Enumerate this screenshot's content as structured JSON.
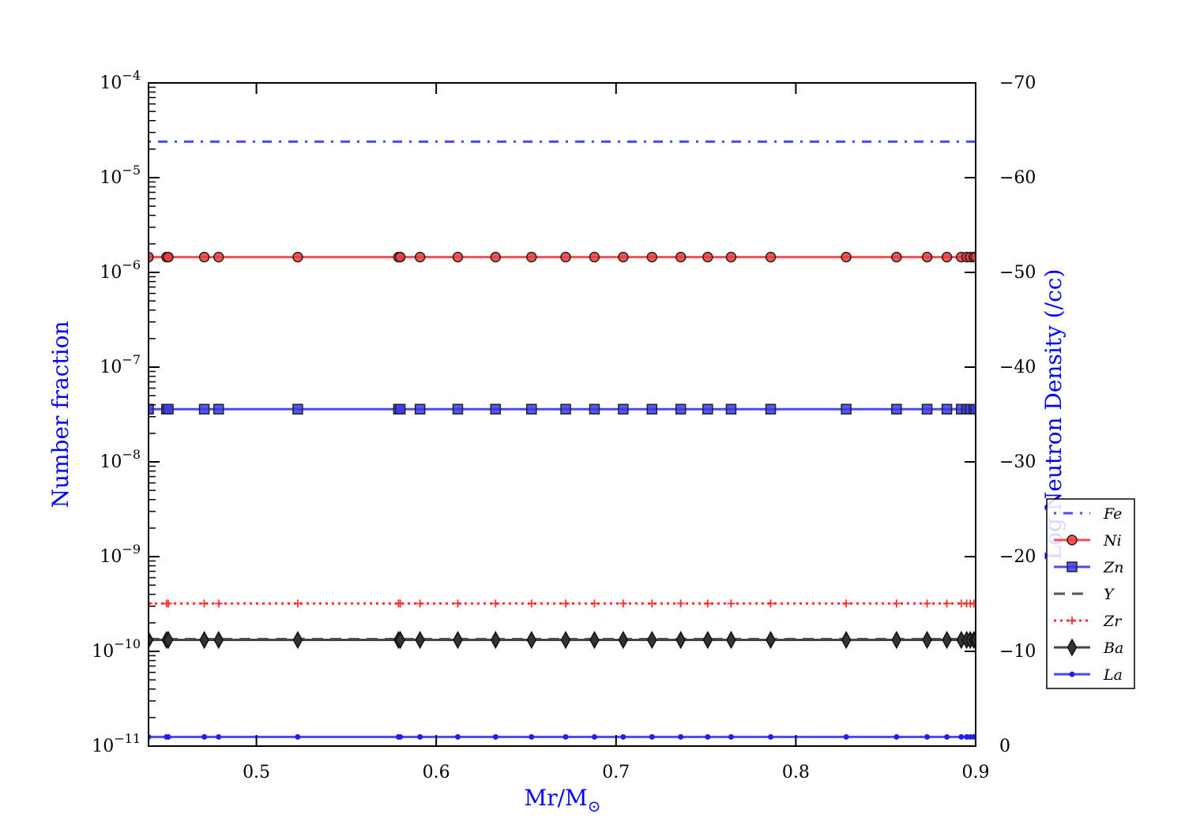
{
  "chart_data": {
    "type": "line",
    "xlabel_main": "Mr/M",
    "xlabel_sub": "⊙",
    "ylabel_left": "Number fraction",
    "ylabel_right": "Log Neutron Density (/cc)",
    "xlim": [
      0.44,
      0.9
    ],
    "ylim_left_log10": [
      -11,
      -4
    ],
    "ylim_right": [
      0,
      -70
    ],
    "x_ticks": [
      0.5,
      0.6,
      0.7,
      0.8,
      0.9
    ],
    "x_tick_labels": [
      "0.5",
      "0.6",
      "0.7",
      "0.8",
      "0.9"
    ],
    "y_left_ticks": [
      -4,
      -5,
      -6,
      -7,
      -8,
      -9,
      -10,
      -11
    ],
    "y_right_ticks": [
      -70,
      -60,
      -50,
      -40,
      -30,
      -20,
      -10,
      0
    ],
    "y_right_tick_labels": [
      "−70",
      "−60",
      "−50",
      "−40",
      "−30",
      "−20",
      "−10",
      "0"
    ],
    "legend_position": "right",
    "x": [
      0.44,
      0.45,
      0.451,
      0.471,
      0.479,
      0.523,
      0.579,
      0.58,
      0.591,
      0.612,
      0.633,
      0.653,
      0.672,
      0.688,
      0.704,
      0.72,
      0.736,
      0.751,
      0.764,
      0.786,
      0.828,
      0.856,
      0.873,
      0.884,
      0.892,
      0.895,
      0.897,
      0.899,
      0.9
    ],
    "series": [
      {
        "name": "Fe",
        "value": 2.4e-05,
        "color": "#4a4af5",
        "dash": "3 9 12 9",
        "marker": "none"
      },
      {
        "name": "Ni",
        "value": 1.45e-06,
        "color": "#f25050",
        "dash": "",
        "marker": "circle",
        "fill": "#ee3c3c"
      },
      {
        "name": "Zn",
        "value": 3.6e-08,
        "color": "#4a4af5",
        "dash": "",
        "marker": "square",
        "fill": "#3a3aee"
      },
      {
        "name": "Y",
        "value": 1.35e-10,
        "color": "#555555",
        "dash": "14 9",
        "marker": "none"
      },
      {
        "name": "Zr",
        "value": 3.2e-10,
        "color": "#ff3030",
        "dash": "3 5",
        "marker": "plus"
      },
      {
        "name": "Ba",
        "value": 1.32e-10,
        "color": "#444444",
        "dash": "",
        "marker": "diamond",
        "fill": "#333333"
      },
      {
        "name": "La",
        "value": 1.25e-11,
        "color": "#4a4af5",
        "dash": "",
        "marker": "dot",
        "fill": "#2020ee"
      }
    ]
  }
}
